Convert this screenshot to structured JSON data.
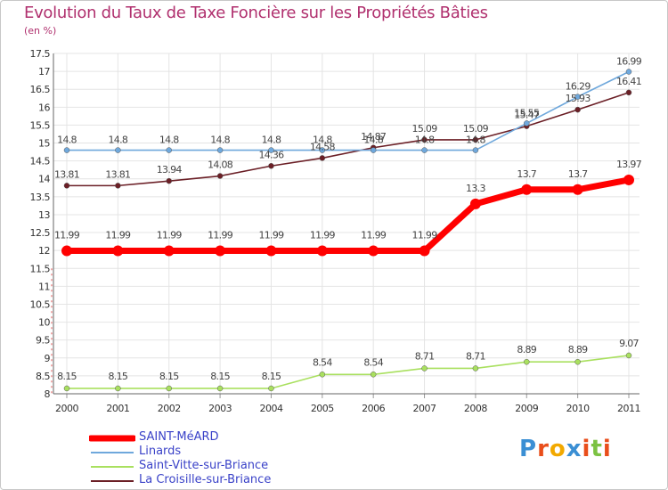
{
  "header": {
    "title": "Evolution du Taux de Taxe Foncière sur les Propriétés Bâties",
    "unit_note": "(en %)"
  },
  "chart_data": {
    "type": "line",
    "title": "Evolution du Taux de Taxe Foncière sur les Propriétés Bâties",
    "ylabel": "(en %)",
    "xlabel": "",
    "ylim": [
      8,
      17.5
    ],
    "yticks": [
      "8",
      "8.5",
      "9",
      "9.5",
      "10",
      "10.5",
      "11",
      "11.5",
      "12",
      "12.5",
      "13",
      "13.5",
      "14",
      "14.5",
      "15",
      "15.5",
      "16",
      "16.5",
      "17",
      "17.5"
    ],
    "categories": [
      "2000",
      "2001",
      "2002",
      "2003",
      "2004",
      "2005",
      "2006",
      "2007",
      "2008",
      "2009",
      "2010",
      "2011"
    ],
    "grid": true,
    "series": [
      {
        "name": "SAINT-MéARD",
        "color": "#ff0000",
        "values": [
          11.99,
          11.99,
          11.99,
          11.99,
          11.99,
          11.99,
          11.99,
          11.99,
          13.3,
          13.7,
          13.7,
          13.97
        ],
        "labels": [
          "11.99",
          "11.99",
          "11.99",
          "11.99",
          "11.99",
          "11.99",
          "11.99",
          "11.99",
          "13.3",
          "13.7",
          "13.7",
          "13.97"
        ]
      },
      {
        "name": "Linards",
        "color": "#6fa8dc",
        "values": [
          14.8,
          14.8,
          14.8,
          14.8,
          14.8,
          14.8,
          14.8,
          14.8,
          14.8,
          15.55,
          16.29,
          16.99
        ],
        "labels": [
          "14.8",
          "14.8",
          "14.8",
          "14.8",
          "14.8",
          "14.8",
          "14.8",
          "14.8",
          "14.8",
          "15.55",
          "16.29",
          "16.99"
        ]
      },
      {
        "name": "Saint-Vitte-sur-Briance",
        "color": "#a9e05f",
        "values": [
          8.15,
          8.15,
          8.15,
          8.15,
          8.15,
          8.54,
          8.54,
          8.71,
          8.71,
          8.89,
          8.89,
          9.07
        ],
        "labels": [
          "8.15",
          "8.15",
          "8.15",
          "8.15",
          "8.15",
          "8.54",
          "8.54",
          "8.71",
          "8.71",
          "8.89",
          "8.89",
          "9.07"
        ]
      },
      {
        "name": "La Croisille-sur-Briance",
        "color": "#6b1f26",
        "values": [
          13.81,
          13.81,
          13.94,
          14.08,
          14.36,
          14.58,
          14.87,
          15.09,
          15.09,
          15.47,
          15.93,
          16.41
        ],
        "labels": [
          "13.81",
          "13.81",
          "13.94",
          "14.08",
          "14.36",
          "14.58",
          "14.87",
          "15.09",
          "15.09",
          "15.47",
          "15.93",
          "16.41"
        ]
      }
    ]
  },
  "legend": {
    "items": [
      {
        "label": "SAINT-MéARD",
        "color": "#ff0000"
      },
      {
        "label": "Linards",
        "color": "#6fa8dc"
      },
      {
        "label": "Saint-Vitte-sur-Briance",
        "color": "#a9e05f"
      },
      {
        "label": "La Croisille-sur-Briance",
        "color": "#6b1f26"
      }
    ]
  },
  "brand": {
    "letters": [
      "P",
      "r",
      "o",
      "x",
      "i",
      "t",
      "i"
    ],
    "colors": [
      "#3b8fd4",
      "#e94e1b",
      "#f2a900",
      "#3b8fd4",
      "#e94e1b",
      "#7cc242",
      "#e94e1b"
    ]
  }
}
